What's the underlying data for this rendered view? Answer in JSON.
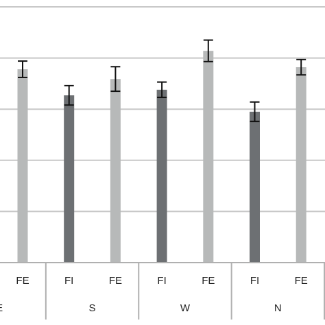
{
  "chart_data": {
    "type": "bar",
    "groups": [
      "E",
      "S",
      "W",
      "N"
    ],
    "categories": [
      null,
      "FE",
      "FI",
      "FE",
      "FI",
      "FE",
      "FI",
      "FE"
    ],
    "values": [
      null,
      3.78,
      3.27,
      3.59,
      3.38,
      4.14,
      2.95,
      3.82
    ],
    "errors": [
      null,
      0.16,
      0.19,
      0.24,
      0.15,
      0.21,
      0.19,
      0.15
    ],
    "colors": [
      "#6d7073",
      "#b7b9b9",
      "#6d7073",
      "#b7b9b9",
      "#6d7073",
      "#b7b9b9",
      "#6d7073",
      "#b7b9b9"
    ],
    "ylim": [
      0,
      5
    ],
    "yticks": [
      0,
      1,
      2,
      3,
      4,
      5
    ],
    "grid": true
  }
}
